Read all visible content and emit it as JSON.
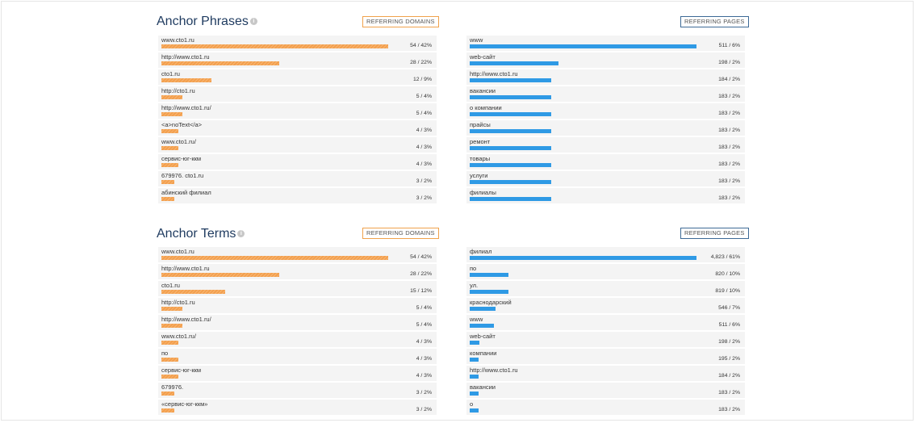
{
  "colors": {
    "domains_accent": "#f3a04e",
    "pages_accent": "#2f9ae5",
    "title": "#1e3a5f"
  },
  "sections": [
    {
      "title": "Anchor Phrases",
      "domains_tab": "REFERRING DOMAINS",
      "pages_tab": "REFERRING PAGES",
      "domains": [
        {
          "label": "www.cto1.ru",
          "value": "54 / 42%",
          "fraction": 1.0
        },
        {
          "label": "http://www.cto1.ru",
          "value": "28 / 22%",
          "fraction": 0.52
        },
        {
          "label": "cto1.ru",
          "value": "12 / 9%",
          "fraction": 0.22
        },
        {
          "label": "http://cto1.ru",
          "value": "5 / 4%",
          "fraction": 0.093
        },
        {
          "label": "http://www.cto1.ru/",
          "value": "5 / 4%",
          "fraction": 0.093
        },
        {
          "label": "<a>noText</a>",
          "value": "4 / 3%",
          "fraction": 0.074
        },
        {
          "label": "www.cto1.ru/",
          "value": "4 / 3%",
          "fraction": 0.074
        },
        {
          "label": "сервис-юг-ккм",
          "value": "4 / 3%",
          "fraction": 0.074
        },
        {
          "label": "679976. cto1.ru",
          "value": "3 / 2%",
          "fraction": 0.056
        },
        {
          "label": "абинский филиал",
          "value": "3 / 2%",
          "fraction": 0.056
        }
      ],
      "pages": [
        {
          "label": "www",
          "value": "511 / 6%",
          "fraction": 1.0
        },
        {
          "label": "web-сайт",
          "value": "198 / 2%",
          "fraction": 0.39
        },
        {
          "label": "http://www.cto1.ru",
          "value": "184 / 2%",
          "fraction": 0.36
        },
        {
          "label": "вакансии",
          "value": "183 / 2%",
          "fraction": 0.358
        },
        {
          "label": "о компании",
          "value": "183 / 2%",
          "fraction": 0.358
        },
        {
          "label": "прайсы",
          "value": "183 / 2%",
          "fraction": 0.358
        },
        {
          "label": "ремонт",
          "value": "183 / 2%",
          "fraction": 0.358
        },
        {
          "label": "товары",
          "value": "183 / 2%",
          "fraction": 0.358
        },
        {
          "label": "услуги",
          "value": "183 / 2%",
          "fraction": 0.358
        },
        {
          "label": "филиалы",
          "value": "183 / 2%",
          "fraction": 0.358
        }
      ]
    },
    {
      "title": "Anchor Terms",
      "domains_tab": "REFERRING DOMAINS",
      "pages_tab": "REFERRING PAGES",
      "domains": [
        {
          "label": "www.cto1.ru",
          "value": "54 / 42%",
          "fraction": 1.0
        },
        {
          "label": "http://www.cto1.ru",
          "value": "28 / 22%",
          "fraction": 0.52
        },
        {
          "label": "cto1.ru",
          "value": "15 / 12%",
          "fraction": 0.28
        },
        {
          "label": "http://cto1.ru",
          "value": "5 / 4%",
          "fraction": 0.093
        },
        {
          "label": "http://www.cto1.ru/",
          "value": "5 / 4%",
          "fraction": 0.093
        },
        {
          "label": "www.cto1.ru/",
          "value": "4 / 3%",
          "fraction": 0.074
        },
        {
          "label": "по",
          "value": "4 / 3%",
          "fraction": 0.074
        },
        {
          "label": "сервис-юг-ккм",
          "value": "4 / 3%",
          "fraction": 0.074
        },
        {
          "label": "679976.",
          "value": "3 / 2%",
          "fraction": 0.056
        },
        {
          "label": "«сервис-юг-ккм»",
          "value": "3 / 2%",
          "fraction": 0.056
        }
      ],
      "pages": [
        {
          "label": "филиал",
          "value": "4,823 / 61%",
          "fraction": 1.0
        },
        {
          "label": "по",
          "value": "820 / 10%",
          "fraction": 0.17
        },
        {
          "label": "ул.",
          "value": "819 / 10%",
          "fraction": 0.17
        },
        {
          "label": "краснодарский",
          "value": "546 / 7%",
          "fraction": 0.113
        },
        {
          "label": "www",
          "value": "511 / 6%",
          "fraction": 0.106
        },
        {
          "label": "web-сайт",
          "value": "198 / 2%",
          "fraction": 0.041
        },
        {
          "label": "компании",
          "value": "195 / 2%",
          "fraction": 0.04
        },
        {
          "label": "http://www.cto1.ru",
          "value": "184 / 2%",
          "fraction": 0.038
        },
        {
          "label": "вакансии",
          "value": "183 / 2%",
          "fraction": 0.038
        },
        {
          "label": "о",
          "value": "183 / 2%",
          "fraction": 0.038
        }
      ]
    }
  ]
}
